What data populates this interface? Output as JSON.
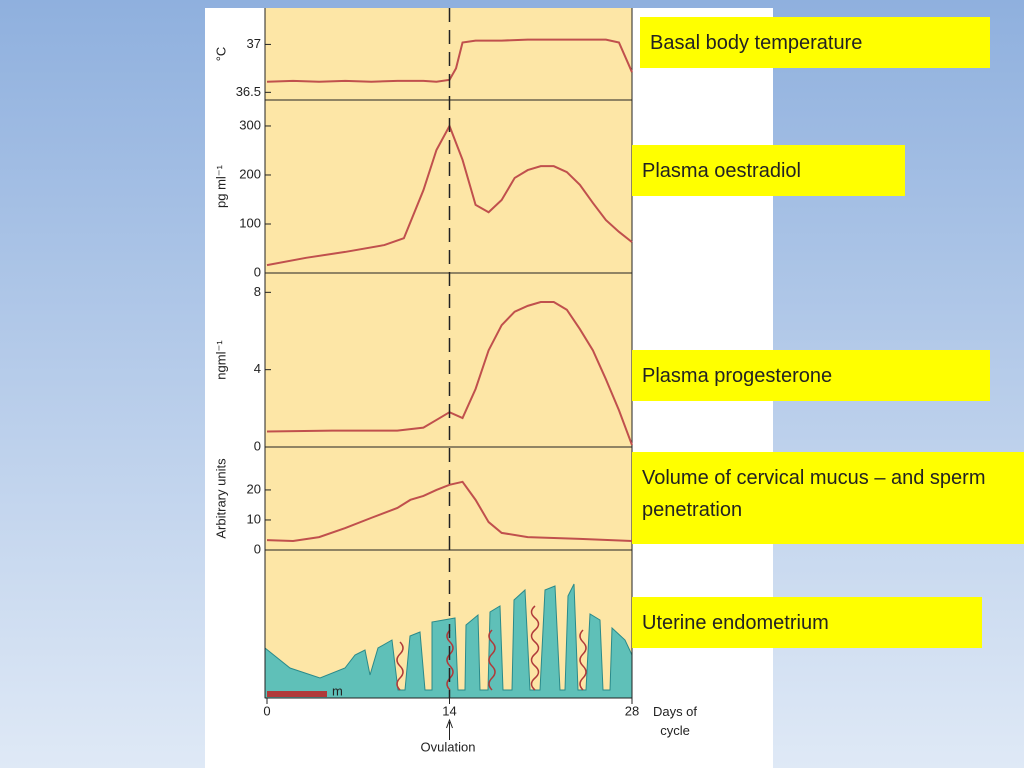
{
  "labels": [
    "Basal body temperature",
    "Plasma oestradiol",
    "Plasma progesterone",
    "Volume of cervical mucus – and sperm penetration",
    "Uterine endometrium"
  ],
  "shared_x": {
    "xlim": [
      0,
      28
    ],
    "xticks": [
      0,
      14,
      28
    ],
    "label": "Days of cycle",
    "annotation": "Ovulation",
    "ovulation_day": 14
  },
  "endometrium": {
    "scale_label": "m"
  },
  "chart_data": [
    {
      "type": "line",
      "ylabel": "°C",
      "color": "#c0504d",
      "ylim": [
        36.42,
        37.38
      ],
      "yticks": [
        36.5,
        37
      ],
      "x": [
        0,
        2,
        4,
        6,
        8,
        10,
        12,
        13,
        14,
        14.5,
        15,
        16,
        18,
        20,
        22,
        24,
        26,
        27,
        28
      ],
      "values": [
        36.61,
        36.62,
        36.61,
        36.62,
        36.61,
        36.62,
        36.62,
        36.61,
        36.63,
        36.75,
        37.02,
        37.04,
        37.04,
        37.05,
        37.05,
        37.05,
        37.05,
        37.02,
        36.71
      ]
    },
    {
      "type": "line",
      "ylabel": "pg ml⁻¹",
      "color": "#c0504d",
      "ylim": [
        0,
        353
      ],
      "yticks": [
        0,
        100,
        200,
        300
      ],
      "x": [
        0,
        3,
        6,
        9,
        10.5,
        12,
        13,
        14,
        15,
        16,
        17,
        18,
        19,
        20,
        21,
        22,
        23,
        24,
        25,
        26,
        27,
        28
      ],
      "values": [
        16,
        31,
        43,
        57,
        71,
        169,
        251,
        300,
        231,
        139,
        124,
        149,
        194,
        210,
        218,
        218,
        206,
        180,
        143,
        108,
        84,
        63
      ]
    },
    {
      "type": "line",
      "ylabel": "ngml⁻¹",
      "color": "#c0504d",
      "ylim": [
        0,
        9
      ],
      "yticks": [
        0,
        4,
        8
      ],
      "x": [
        0,
        5,
        10,
        12,
        13,
        14,
        15,
        16,
        17,
        18,
        19,
        20,
        21,
        22,
        23,
        24,
        25,
        26,
        27,
        28
      ],
      "values": [
        0.8,
        0.85,
        0.85,
        1.0,
        1.4,
        1.8,
        1.5,
        3.0,
        5.0,
        6.3,
        7.0,
        7.3,
        7.5,
        7.5,
        7.1,
        6.1,
        5.0,
        3.5,
        1.9,
        0.1
      ]
    },
    {
      "type": "line",
      "ylabel": "Arbitrary units",
      "color": "#c0504d",
      "ylim": [
        0,
        34.3
      ],
      "yticks": [
        0,
        10,
        20
      ],
      "x": [
        0,
        2,
        4,
        6,
        8,
        10,
        11,
        12,
        13,
        14,
        15,
        16,
        17,
        18,
        20,
        24,
        28
      ],
      "values": [
        3.3,
        3,
        4.3,
        7.3,
        10.7,
        14,
        16.7,
        18,
        20,
        21.7,
        22.7,
        16.7,
        9.3,
        5.7,
        4.3,
        3.7,
        3
      ]
    }
  ]
}
